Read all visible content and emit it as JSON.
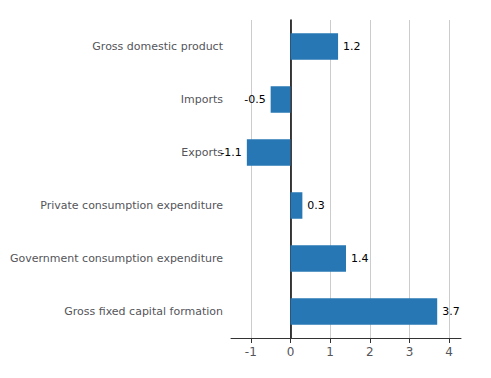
{
  "chart_data": {
    "type": "bar",
    "orientation": "horizontal",
    "categories": [
      "Gross fixed capital formation",
      "Government consumption expenditure",
      "Private consumption expenditure",
      "Exports",
      "Imports",
      "Gross domestic product"
    ],
    "values": [
      3.7,
      1.4,
      0.3,
      -1.1,
      -0.5,
      1.2
    ],
    "color": "#2777B4",
    "xlim": [
      -1.5,
      4.3
    ],
    "xticks": [
      -1,
      0,
      1,
      2,
      3,
      4
    ],
    "grid": true,
    "data_labels": true
  }
}
